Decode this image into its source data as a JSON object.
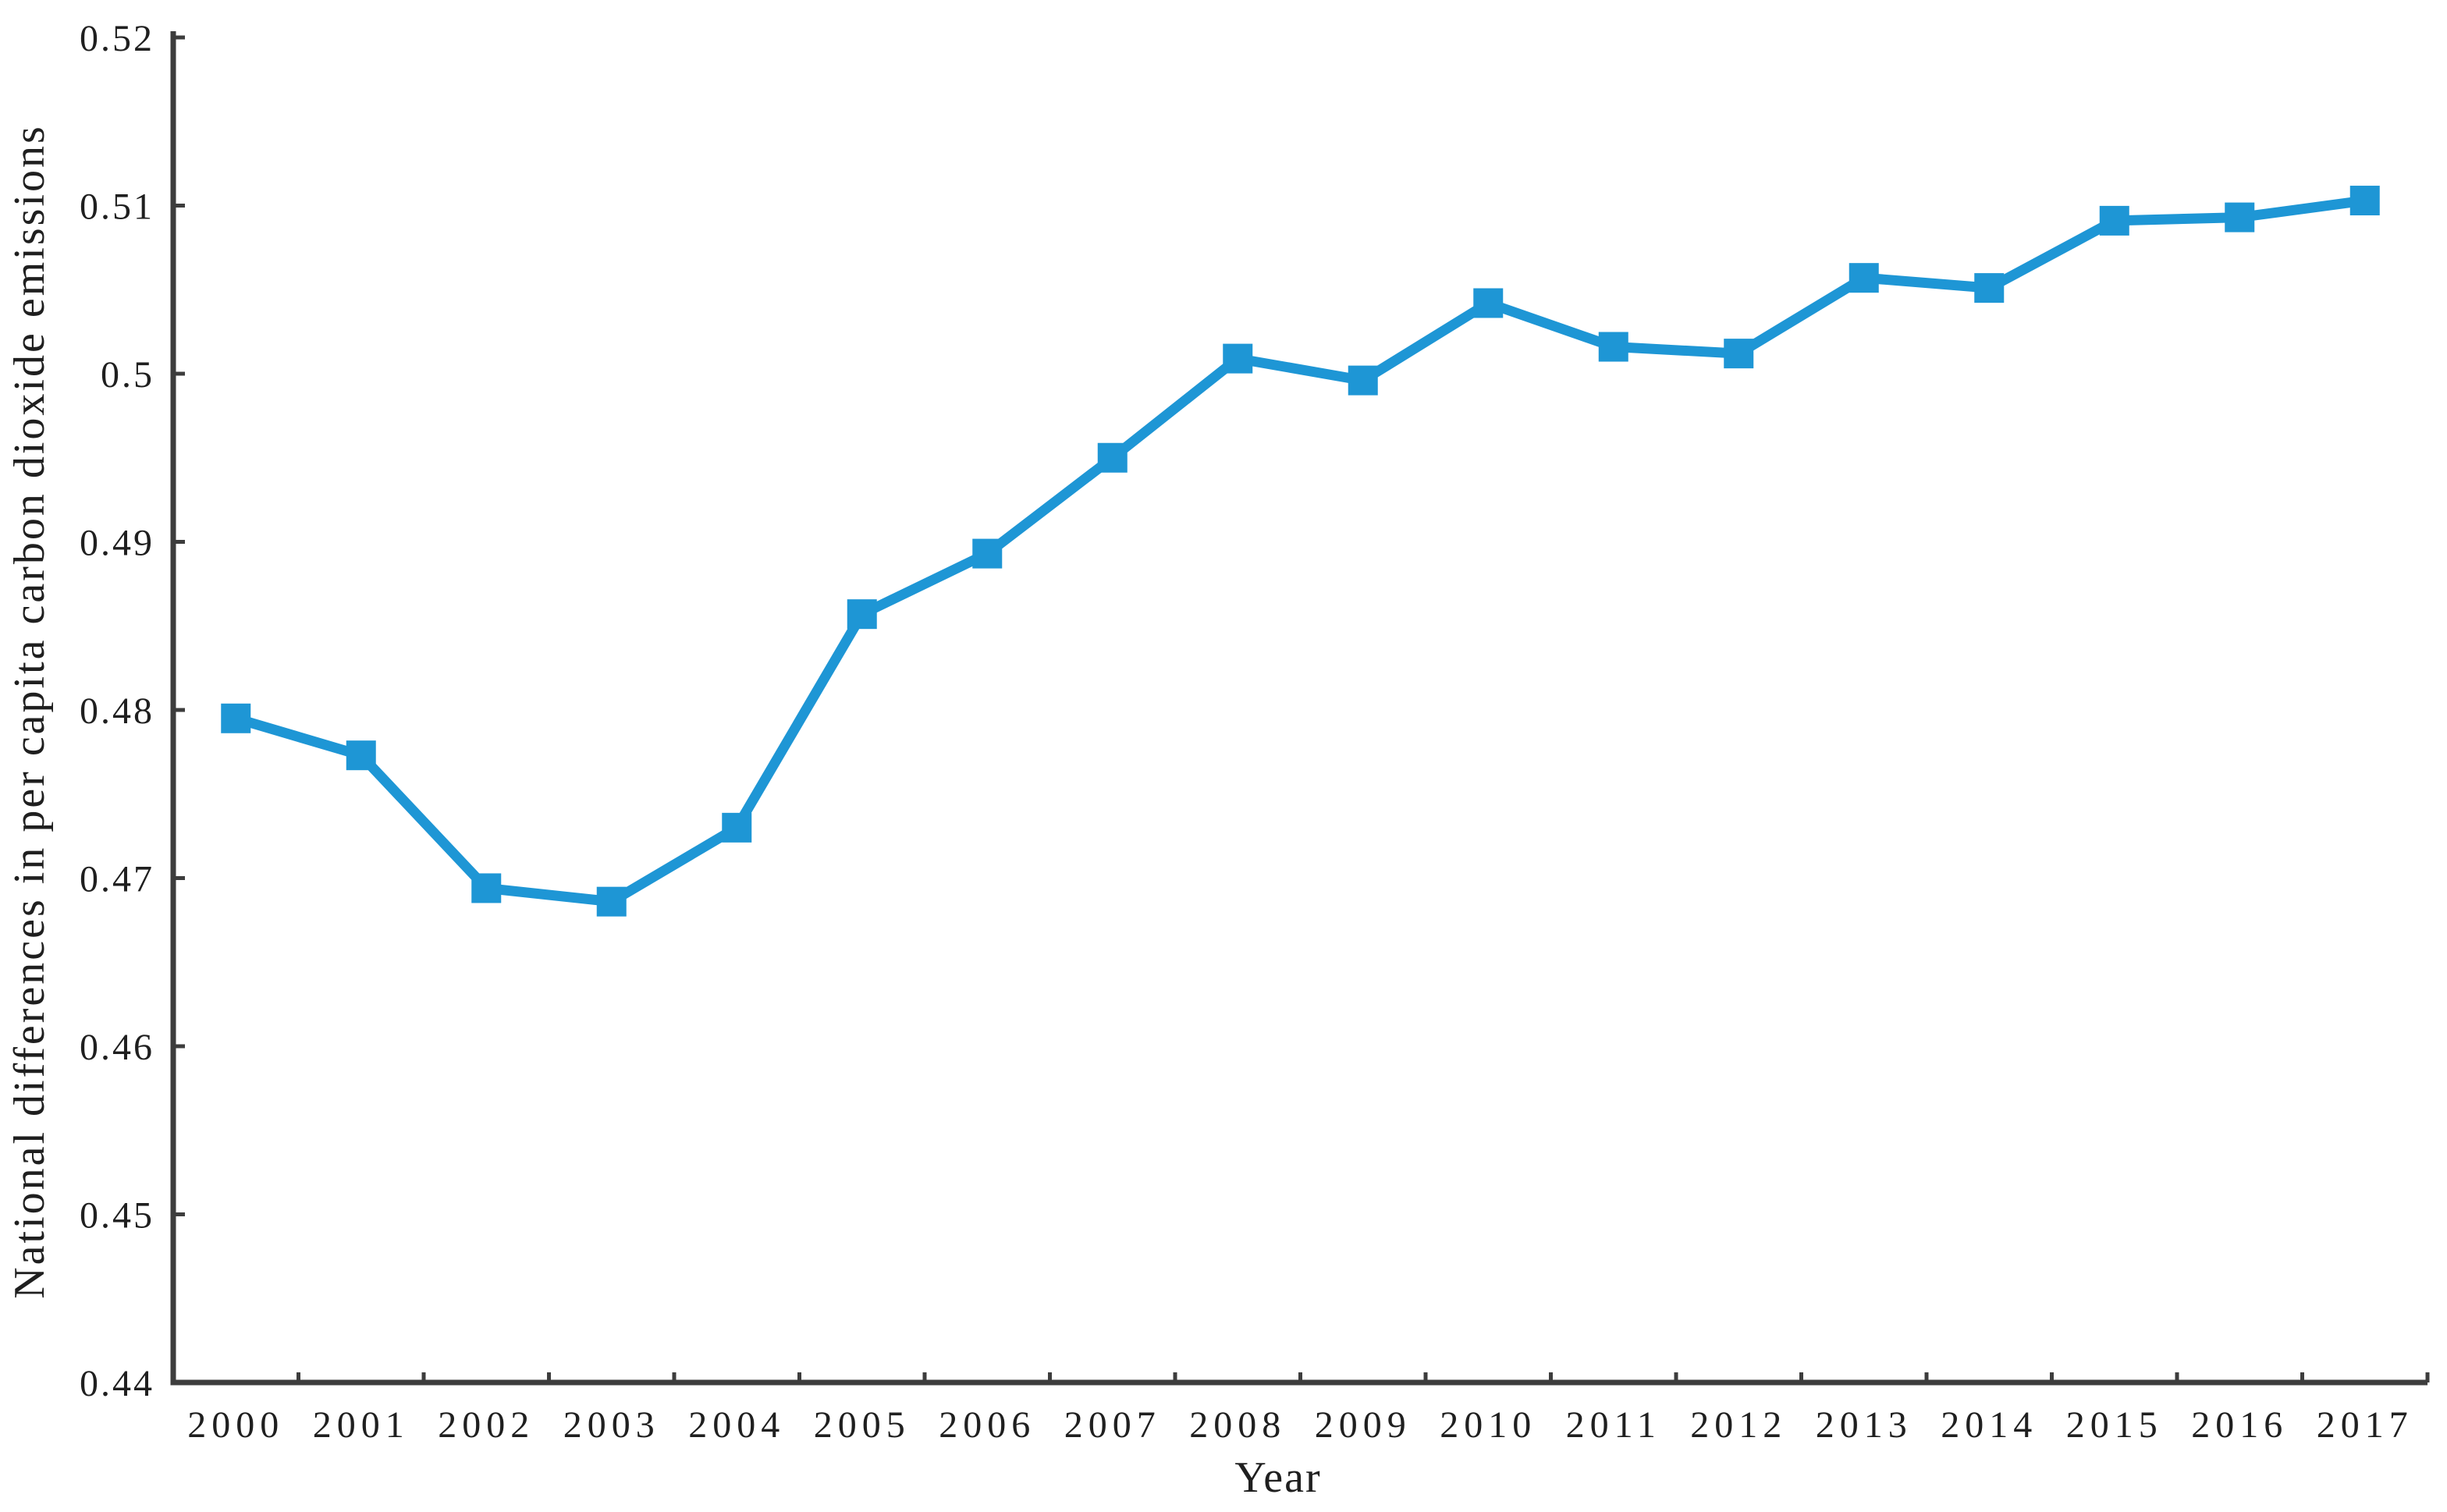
{
  "figure": {
    "background": "#ffffff"
  },
  "chart_data": {
    "type": "line",
    "title": "",
    "xlabel": "Year",
    "ylabel": "National differences in per capita carbon dioxide emissions",
    "categories": [
      "2000",
      "2001",
      "2002",
      "2003",
      "2004",
      "2005",
      "2006",
      "2007",
      "2008",
      "2009",
      "2010",
      "2011",
      "2012",
      "2013",
      "2014",
      "2015",
      "2016",
      "2017"
    ],
    "series": [
      {
        "name": "National differences in per capita carbon dioxide emissions",
        "values": [
          0.4795,
          0.4773,
          0.4694,
          0.4686,
          0.473,
          0.4857,
          0.4893,
          0.495,
          0.5009,
          0.4996,
          0.5042,
          0.5016,
          0.5012,
          0.5057,
          0.5051,
          0.5091,
          0.5093,
          0.5103
        ]
      }
    ],
    "ylim": [
      0.44,
      0.52
    ],
    "ytick_step": 0.01,
    "ytick_labels": [
      "0.44",
      "0.45",
      "0.46",
      "0.47",
      "0.48",
      "0.49",
      "0.5",
      "0.51",
      "0.52"
    ],
    "grid": false,
    "legend_position": "none",
    "marker": "square",
    "colors": {
      "line": "#1E96D5",
      "marker": "#1E96D5",
      "axis": "#3D3D3D",
      "text": "#1F1F1F"
    }
  }
}
